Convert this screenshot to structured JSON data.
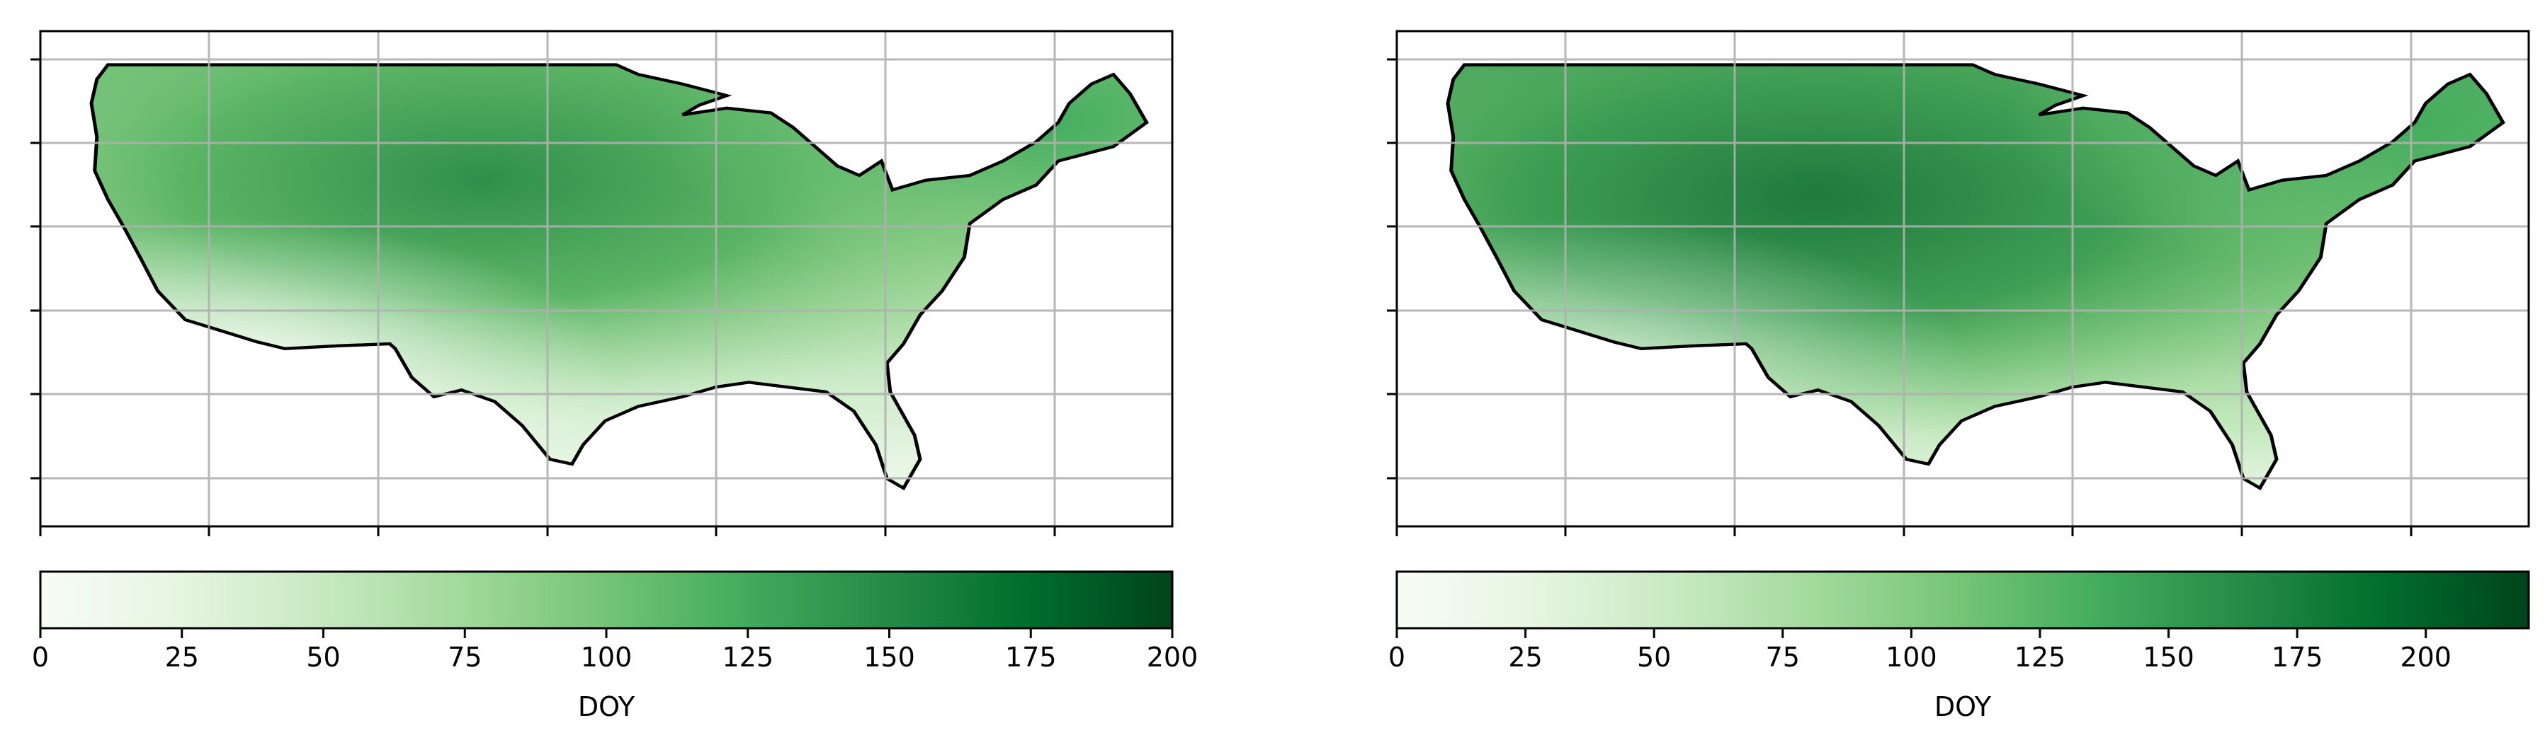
{
  "figure": {
    "panels": [
      {
        "id": "left",
        "colorbar": {
          "label": "DOY",
          "min": 0,
          "max": 200,
          "ticks": [
            0,
            25,
            50,
            75,
            100,
            125,
            150,
            175,
            200
          ],
          "tick_labels": [
            "0",
            "25",
            "50",
            "75",
            "100",
            "125",
            "150",
            "175",
            "200"
          ],
          "colormap": "Greens"
        }
      },
      {
        "id": "right",
        "colorbar": {
          "label": "DOY",
          "min": 0,
          "max": 220,
          "ticks": [
            0,
            25,
            50,
            75,
            100,
            125,
            150,
            175,
            200
          ],
          "tick_labels": [
            "0",
            "25",
            "50",
            "75",
            "100",
            "125",
            "150",
            "175",
            "200"
          ],
          "colormap": "Greens"
        }
      }
    ],
    "map": {
      "region": "contiguous United States",
      "gridlines": true,
      "tick_labels_shown": false,
      "colors": {
        "light": "#f7fcf5",
        "mid": "#74c476",
        "dark": "#00441b",
        "grid": "#b0b0b0",
        "outline": "#000000"
      }
    }
  }
}
